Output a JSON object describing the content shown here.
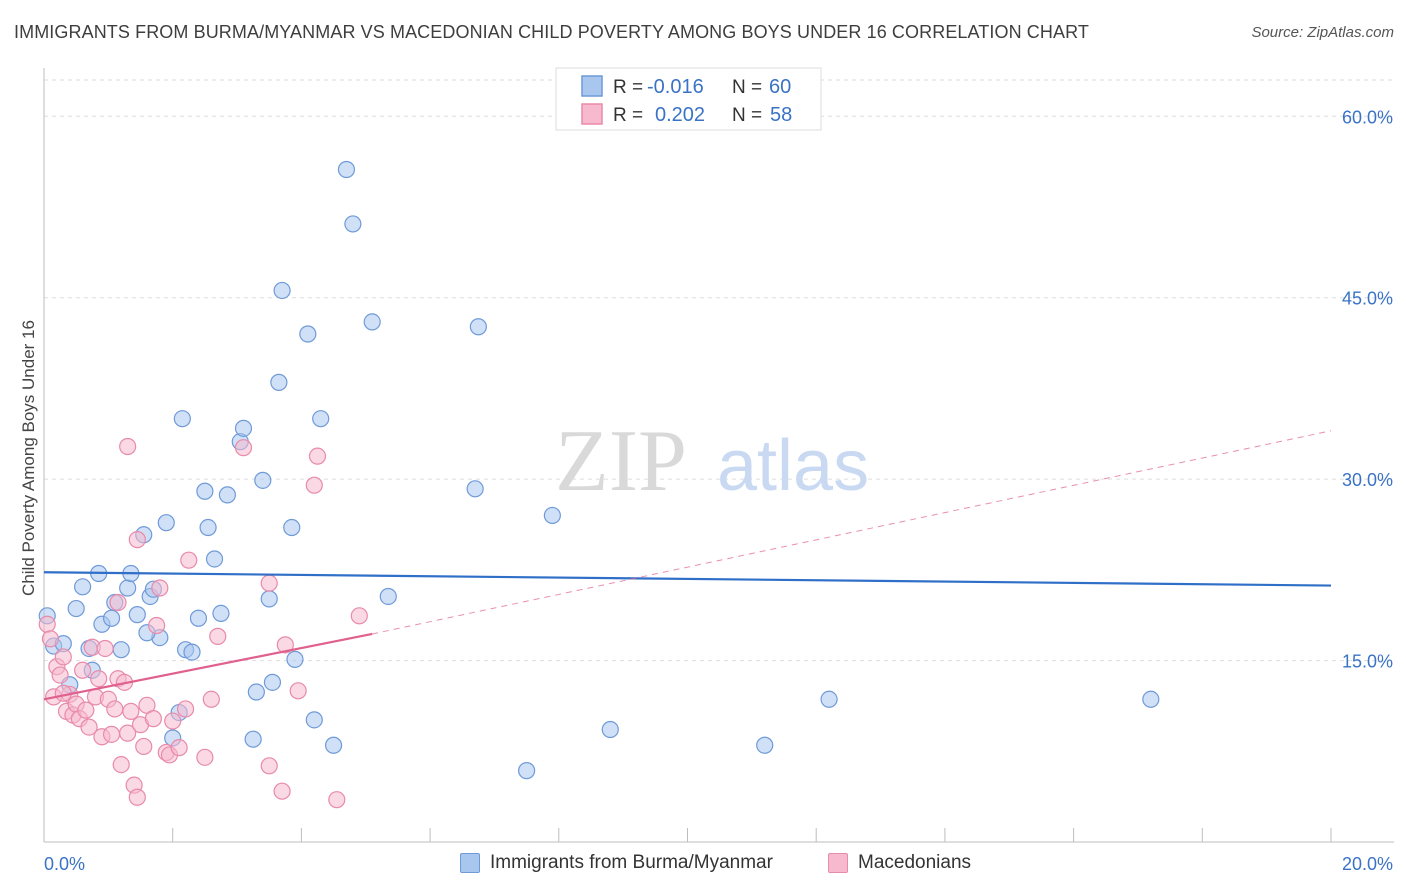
{
  "title": "IMMIGRANTS FROM BURMA/MYANMAR VS MACEDONIAN CHILD POVERTY AMONG BOYS UNDER 16 CORRELATION CHART",
  "source": "Source: ZipAtlas.com",
  "watermark": {
    "part1": "ZIP",
    "part2": "atlas"
  },
  "colors": {
    "blue_fill": "#a9c6ef",
    "blue_stroke": "#6f9ad8",
    "blue_line": "#2f6fc8",
    "pink_fill": "#f6b9cd",
    "pink_stroke": "#e88aaa",
    "pink_line": "#e0608e",
    "axis_text": "#3a73c6",
    "grid": "#dedede"
  },
  "legend_top": {
    "rows": [
      {
        "r_label": "R =",
        "r_value": "-0.016",
        "n_label": "N =",
        "n_value": "60",
        "series": "blue"
      },
      {
        "r_label": "R =",
        "r_value": "0.202",
        "n_label": "N =",
        "n_value": "58",
        "series": "pink"
      }
    ]
  },
  "legend_bottom": [
    {
      "label": "Immigrants from Burma/Myanmar",
      "series": "blue"
    },
    {
      "label": "Macedonians",
      "series": "pink"
    }
  ],
  "chart_data": {
    "type": "scatter",
    "title": "IMMIGRANTS FROM BURMA/MYANMAR VS MACEDONIAN CHILD POVERTY AMONG BOYS UNDER 16 CORRELATION CHART",
    "xlabel": "",
    "ylabel": "Child Poverty Among Boys Under 16",
    "xlim": [
      0,
      20
    ],
    "ylim": [
      0,
      63
    ],
    "x_tick_labels": [
      "0.0%",
      "20.0%"
    ],
    "y_ticks": [
      15,
      30,
      45,
      60
    ],
    "y_tick_labels": [
      "15.0%",
      "30.0%",
      "45.0%",
      "60.0%"
    ],
    "grid": true,
    "series": [
      {
        "name": "Immigrants from Burma/Myanmar",
        "color": "blue",
        "trend": {
          "x": [
            0,
            20
          ],
          "y": [
            22.3,
            21.2
          ],
          "style": "solid"
        },
        "points": [
          [
            0.05,
            18.7
          ],
          [
            0.15,
            16.2
          ],
          [
            0.3,
            16.4
          ],
          [
            0.4,
            13.0
          ],
          [
            0.5,
            19.3
          ],
          [
            0.6,
            21.1
          ],
          [
            0.7,
            16.0
          ],
          [
            0.75,
            14.2
          ],
          [
            0.85,
            22.2
          ],
          [
            0.9,
            18.0
          ],
          [
            1.05,
            18.5
          ],
          [
            1.1,
            19.8
          ],
          [
            1.2,
            15.9
          ],
          [
            1.3,
            21.0
          ],
          [
            1.35,
            22.2
          ],
          [
            1.45,
            18.8
          ],
          [
            1.55,
            25.4
          ],
          [
            1.65,
            20.3
          ],
          [
            1.7,
            20.9
          ],
          [
            1.8,
            16.9
          ],
          [
            1.9,
            26.4
          ],
          [
            2.0,
            8.6
          ],
          [
            2.1,
            10.7
          ],
          [
            2.15,
            35.0
          ],
          [
            2.2,
            15.9
          ],
          [
            2.3,
            15.7
          ],
          [
            2.4,
            18.5
          ],
          [
            2.5,
            29.0
          ],
          [
            2.55,
            26.0
          ],
          [
            2.65,
            23.4
          ],
          [
            2.75,
            18.9
          ],
          [
            2.85,
            28.7
          ],
          [
            3.05,
            33.1
          ],
          [
            3.1,
            34.2
          ],
          [
            3.25,
            8.5
          ],
          [
            3.3,
            12.4
          ],
          [
            3.4,
            29.9
          ],
          [
            3.5,
            20.1
          ],
          [
            3.55,
            13.2
          ],
          [
            3.65,
            38.0
          ],
          [
            3.7,
            45.6
          ],
          [
            3.85,
            26.0
          ],
          [
            3.9,
            15.1
          ],
          [
            4.1,
            42.0
          ],
          [
            4.2,
            10.1
          ],
          [
            4.3,
            35.0
          ],
          [
            4.5,
            8.0
          ],
          [
            4.7,
            55.6
          ],
          [
            4.8,
            51.1
          ],
          [
            5.1,
            43.0
          ],
          [
            5.35,
            20.3
          ],
          [
            6.75,
            42.6
          ],
          [
            6.7,
            29.2
          ],
          [
            7.5,
            5.9
          ],
          [
            7.9,
            27.0
          ],
          [
            8.8,
            9.3
          ],
          [
            11.2,
            8.0
          ],
          [
            12.2,
            11.8
          ],
          [
            17.2,
            11.8
          ],
          [
            1.6,
            17.3
          ]
        ]
      },
      {
        "name": "Macedonians",
        "color": "pink",
        "trend": {
          "x": [
            0,
            5.1
          ],
          "y": [
            11.8,
            17.2
          ],
          "style": "solid",
          "extended_to": [
            20,
            34.0
          ],
          "extended_style": "dashed"
        },
        "points": [
          [
            0.05,
            18.0
          ],
          [
            0.1,
            16.8
          ],
          [
            0.15,
            12.0
          ],
          [
            0.2,
            14.5
          ],
          [
            0.25,
            13.8
          ],
          [
            0.3,
            15.3
          ],
          [
            0.35,
            10.8
          ],
          [
            0.4,
            12.2
          ],
          [
            0.45,
            10.5
          ],
          [
            0.5,
            11.4
          ],
          [
            0.55,
            10.2
          ],
          [
            0.6,
            14.2
          ],
          [
            0.65,
            10.9
          ],
          [
            0.7,
            9.5
          ],
          [
            0.75,
            16.1
          ],
          [
            0.8,
            12.0
          ],
          [
            0.85,
            13.5
          ],
          [
            0.9,
            8.7
          ],
          [
            0.95,
            16.0
          ],
          [
            1.0,
            11.8
          ],
          [
            1.05,
            8.9
          ],
          [
            1.1,
            11.0
          ],
          [
            1.15,
            13.5
          ],
          [
            1.2,
            6.4
          ],
          [
            1.25,
            13.2
          ],
          [
            1.3,
            9.0
          ],
          [
            1.35,
            10.8
          ],
          [
            1.4,
            4.7
          ],
          [
            1.45,
            3.7
          ],
          [
            1.5,
            9.7
          ],
          [
            1.55,
            7.9
          ],
          [
            1.6,
            11.3
          ],
          [
            1.7,
            10.2
          ],
          [
            1.75,
            17.9
          ],
          [
            1.8,
            21.0
          ],
          [
            1.9,
            7.4
          ],
          [
            1.95,
            7.2
          ],
          [
            2.0,
            10.0
          ],
          [
            2.1,
            7.8
          ],
          [
            2.2,
            11.0
          ],
          [
            2.25,
            23.3
          ],
          [
            2.5,
            7.0
          ],
          [
            2.6,
            11.8
          ],
          [
            2.7,
            17.0
          ],
          [
            3.1,
            32.6
          ],
          [
            3.5,
            21.4
          ],
          [
            3.7,
            4.2
          ],
          [
            3.75,
            16.3
          ],
          [
            3.5,
            6.3
          ],
          [
            3.95,
            12.5
          ],
          [
            4.2,
            29.5
          ],
          [
            4.25,
            31.9
          ],
          [
            4.55,
            3.5
          ],
          [
            4.9,
            18.7
          ],
          [
            1.3,
            32.7
          ],
          [
            1.45,
            25.0
          ],
          [
            1.15,
            19.8
          ],
          [
            0.3,
            12.3
          ]
        ]
      }
    ]
  }
}
